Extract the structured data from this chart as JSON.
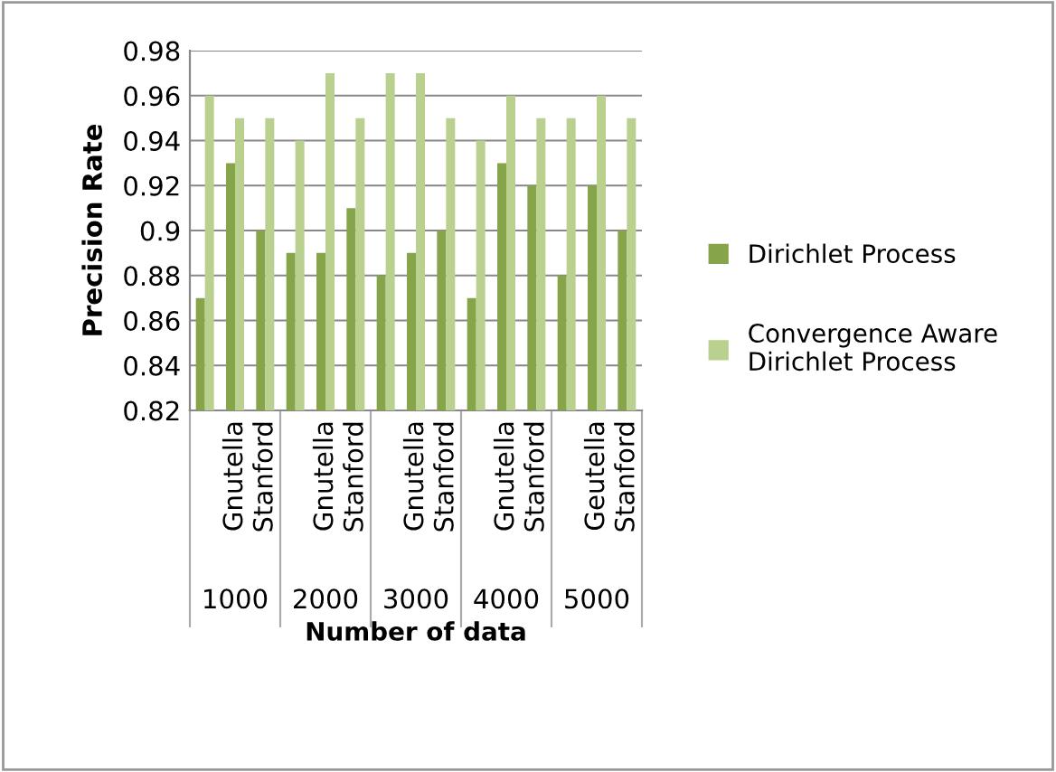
{
  "chart_data": {
    "type": "bar",
    "xlabel": "Number of data",
    "ylabel": "Precision Rate",
    "categories": [
      null,
      "Gnutella",
      "Stanford",
      null,
      "Gnutella",
      "Stanford",
      null,
      "Gnutella",
      "Stanford",
      null,
      "Gnutella",
      "Stanford",
      null,
      "Geutella",
      "Stanford"
    ],
    "series": [
      {
        "name": "Dirichlet Process",
        "color": "#86a44a",
        "values": [
          0.87,
          0.93,
          0.9,
          0.89,
          0.89,
          0.91,
          0.88,
          0.89,
          0.9,
          0.87,
          0.93,
          0.92,
          0.88,
          0.92,
          0.9
        ]
      },
      {
        "name": "Convergence Aware Dirichlet Process",
        "color": "#b9d08f",
        "values": [
          0.96,
          0.95,
          0.95,
          0.94,
          0.97,
          0.95,
          0.97,
          0.97,
          0.95,
          0.94,
          0.96,
          0.95,
          0.95,
          0.96,
          0.95
        ]
      }
    ],
    "annotations": [
      "1000",
      "2000",
      "3000",
      "4000",
      "5000"
    ],
    "ylim": [
      0.82,
      0.98
    ],
    "yticks": [
      0.82,
      0.84,
      0.86,
      0.88,
      {
        "value": 0.9,
        "label": "0.9"
      },
      0.92,
      0.94,
      0.96,
      0.98
    ],
    "grid": "y",
    "legend": "right"
  }
}
